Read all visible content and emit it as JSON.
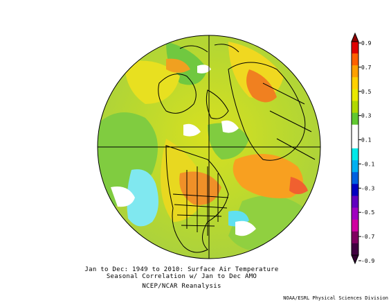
{
  "caption": {
    "line1": "Jan to Dec: 1949 to 2010: Surface Air Temperature",
    "line2": "Seasonal Correlation w/ Jan to Dec AMO",
    "line3": "NCEP/NCAR Reanalysis"
  },
  "credit": "NOAA/ESRL Physical Sciences Division",
  "colorbar": {
    "ticks": [
      "0.9",
      "0.7",
      "0.5",
      "0.3",
      "0.1",
      "-0.1",
      "-0.3",
      "-0.5",
      "-0.7",
      "-0.9"
    ],
    "colors": [
      "#e00000",
      "#ff6000",
      "#ffa000",
      "#ffd000",
      "#e8e800",
      "#b0d800",
      "#60c830",
      "#ffffff",
      "#ffffff",
      "#00e8e8",
      "#00b0f0",
      "#0060e0",
      "#0000c0",
      "#6000c0",
      "#a000c0",
      "#d000a0",
      "#800060",
      "#400040"
    ]
  },
  "map": {
    "projection": "north-polar-stereographic"
  }
}
